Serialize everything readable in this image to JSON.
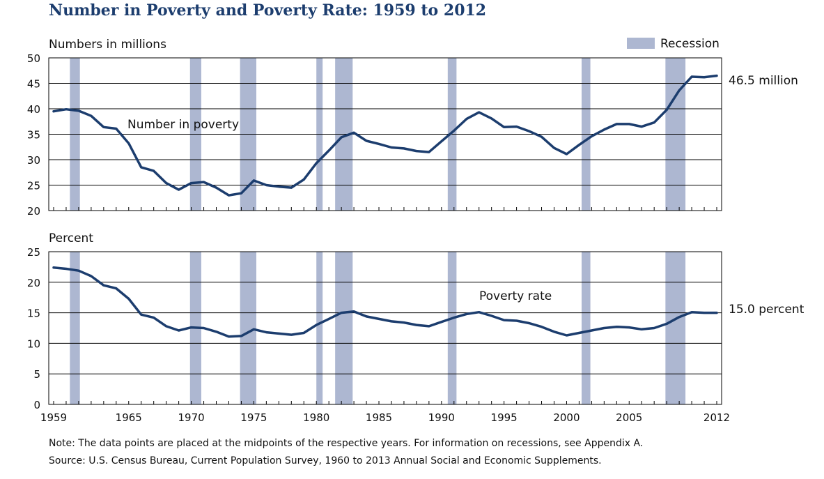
{
  "title": "Number in Poverty and Poverty Rate: 1959 to 2012",
  "legend": {
    "label": "Recession",
    "color": "#adb7d1"
  },
  "colors": {
    "line": "#1c3d6e",
    "recession": "#adb7d1",
    "title": "#1c3d6e"
  },
  "note": "Note: The data points are placed at the midpoints of the respective years. For information on recessions, see Appendix A.",
  "source": "Source: U.S. Census Bureau, Current Population Survey, 1960 to 2013 Annual Social and Economic Supplements.",
  "chart_data": [
    {
      "type": "line",
      "ylabel": "Numbers in millions",
      "ylim": [
        20,
        50
      ],
      "yticks": [
        20,
        25,
        30,
        35,
        40,
        45,
        50
      ],
      "xlim": [
        1959,
        2012
      ],
      "xticks": [
        1959,
        1965,
        1970,
        1975,
        1980,
        1985,
        1990,
        1995,
        2000,
        2005,
        2012
      ],
      "grid": true,
      "annotation": "Number in poverty",
      "end_label": "46.5 million",
      "recessions": [
        [
          1960.3,
          1961.1
        ],
        [
          1969.9,
          1970.8
        ],
        [
          1973.9,
          1975.2
        ],
        [
          1980.0,
          1980.5
        ],
        [
          1981.5,
          1982.9
        ],
        [
          1990.5,
          1991.2
        ],
        [
          2001.2,
          2001.9
        ],
        [
          2007.9,
          2009.5
        ]
      ],
      "series": [
        {
          "x": [
            1959,
            1960,
            1961,
            1962,
            1963,
            1964,
            1965,
            1966,
            1967,
            1968,
            1969,
            1970,
            1971,
            1972,
            1973,
            1974,
            1975,
            1976,
            1977,
            1978,
            1979,
            1980,
            1981,
            1982,
            1983,
            1984,
            1985,
            1986,
            1987,
            1988,
            1989,
            1990,
            1991,
            1992,
            1993,
            1994,
            1995,
            1996,
            1997,
            1998,
            1999,
            2000,
            2001,
            2002,
            2003,
            2004,
            2005,
            2006,
            2007,
            2008,
            2009,
            2010,
            2011,
            2012
          ],
          "values": [
            39.5,
            39.9,
            39.6,
            38.6,
            36.4,
            36.1,
            33.2,
            28.5,
            27.8,
            25.4,
            24.1,
            25.4,
            25.6,
            24.5,
            23.0,
            23.4,
            25.9,
            25.0,
            24.7,
            24.5,
            26.1,
            29.3,
            31.8,
            34.4,
            35.3,
            33.7,
            33.1,
            32.4,
            32.2,
            31.7,
            31.5,
            33.6,
            35.7,
            38.0,
            39.3,
            38.1,
            36.4,
            36.5,
            35.6,
            34.5,
            32.3,
            31.1,
            32.9,
            34.6,
            35.9,
            37.0,
            37.0,
            36.5,
            37.3,
            39.8,
            43.6,
            46.3,
            46.2,
            46.5
          ]
        }
      ]
    },
    {
      "type": "line",
      "ylabel": "Percent",
      "ylim": [
        0,
        25
      ],
      "yticks": [
        0,
        5,
        10,
        15,
        20,
        25
      ],
      "xlim": [
        1959,
        2012
      ],
      "xticks": [
        1959,
        1965,
        1970,
        1975,
        1980,
        1985,
        1990,
        1995,
        2000,
        2005,
        2012
      ],
      "grid": true,
      "annotation": "Poverty rate",
      "end_label": "15.0 percent",
      "recessions": [
        [
          1960.3,
          1961.1
        ],
        [
          1969.9,
          1970.8
        ],
        [
          1973.9,
          1975.2
        ],
        [
          1980.0,
          1980.5
        ],
        [
          1981.5,
          1982.9
        ],
        [
          1990.5,
          1991.2
        ],
        [
          2001.2,
          2001.9
        ],
        [
          2007.9,
          2009.5
        ]
      ],
      "series": [
        {
          "x": [
            1959,
            1960,
            1961,
            1962,
            1963,
            1964,
            1965,
            1966,
            1967,
            1968,
            1969,
            1970,
            1971,
            1972,
            1973,
            1974,
            1975,
            1976,
            1977,
            1978,
            1979,
            1980,
            1981,
            1982,
            1983,
            1984,
            1985,
            1986,
            1987,
            1988,
            1989,
            1990,
            1991,
            1992,
            1993,
            1994,
            1995,
            1996,
            1997,
            1998,
            1999,
            2000,
            2001,
            2002,
            2003,
            2004,
            2005,
            2006,
            2007,
            2008,
            2009,
            2010,
            2011,
            2012
          ],
          "values": [
            22.4,
            22.2,
            21.9,
            21.0,
            19.5,
            19.0,
            17.3,
            14.7,
            14.2,
            12.8,
            12.1,
            12.6,
            12.5,
            11.9,
            11.1,
            11.2,
            12.3,
            11.8,
            11.6,
            11.4,
            11.7,
            13.0,
            14.0,
            15.0,
            15.2,
            14.4,
            14.0,
            13.6,
            13.4,
            13.0,
            12.8,
            13.5,
            14.2,
            14.8,
            15.1,
            14.5,
            13.8,
            13.7,
            13.3,
            12.7,
            11.9,
            11.3,
            11.7,
            12.1,
            12.5,
            12.7,
            12.6,
            12.3,
            12.5,
            13.2,
            14.3,
            15.1,
            15.0,
            15.0
          ]
        }
      ]
    }
  ]
}
